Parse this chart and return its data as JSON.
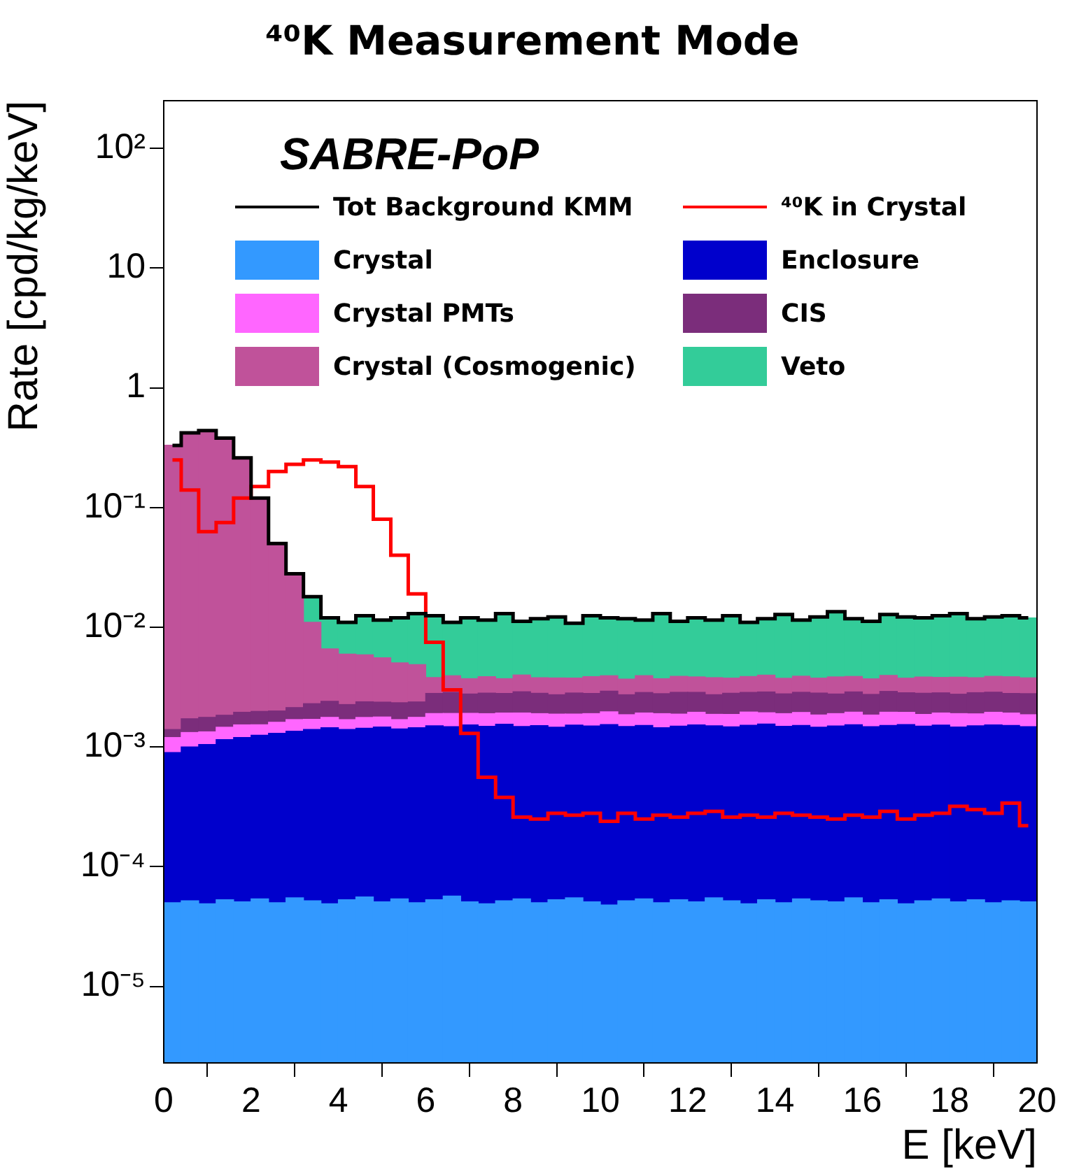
{
  "chart_data": {
    "type": "bar",
    "title": "⁴⁰K Measurement Mode",
    "xlabel": "E [keV]",
    "ylabel": "Rate [cpd/kg/keV]",
    "annotations": [
      "SABRE-PoP"
    ],
    "x": [
      0.2,
      0.6,
      1,
      1.4,
      1.8,
      2.2,
      2.6,
      3,
      3.4,
      3.8,
      4.2,
      4.6,
      5,
      5.4,
      5.8,
      6.2,
      6.6,
      7,
      7.4,
      7.8,
      8.2,
      8.6,
      9,
      9.4,
      9.8,
      10.2,
      10.6,
      11,
      11.4,
      11.8,
      12.2,
      12.6,
      13,
      13.4,
      13.8,
      14.2,
      14.6,
      15,
      15.4,
      15.8,
      16.2,
      16.6,
      17,
      17.4,
      17.8,
      18.2,
      18.6,
      19,
      19.4,
      19.8
    ],
    "xlim": [
      0,
      20
    ],
    "xticks": [
      0,
      2,
      4,
      6,
      8,
      10,
      12,
      14,
      16,
      18,
      20
    ],
    "ylim": [
      2.3e-06,
      250
    ],
    "log": true,
    "stacked": true,
    "legend": "top",
    "yticks": [
      {
        "value": 1e-05,
        "label": "10⁻⁵"
      },
      {
        "value": 0.0001,
        "label": "10⁻⁴"
      },
      {
        "value": 0.001,
        "label": "10⁻³"
      },
      {
        "value": 0.01,
        "label": "10⁻²"
      },
      {
        "value": 0.1,
        "label": "10⁻¹"
      },
      {
        "value": 1,
        "label": "1"
      },
      {
        "value": 10,
        "label": "10"
      },
      {
        "value": 100,
        "label": "10²"
      }
    ],
    "series": [
      {
        "name": "Crystal",
        "color": "#3399ff",
        "values": [
          5e-05,
          5.2e-05,
          4.9e-05,
          5.3e-05,
          5.1e-05,
          5.4e-05,
          5e-05,
          5.5e-05,
          5.2e-05,
          4.9e-05,
          5.3e-05,
          5.6e-05,
          5.1e-05,
          5.4e-05,
          5e-05,
          5.3e-05,
          5.7e-05,
          5.1e-05,
          4.9e-05,
          5.2e-05,
          5.4e-05,
          5e-05,
          5.3e-05,
          5.5e-05,
          5.1e-05,
          4.8e-05,
          5.2e-05,
          5.4e-05,
          5e-05,
          5.3e-05,
          5.1e-05,
          5.5e-05,
          5.2e-05,
          4.9e-05,
          5.3e-05,
          5e-05,
          5.4e-05,
          5.2e-05,
          5.1e-05,
          5.5e-05,
          5e-05,
          5.3e-05,
          4.9e-05,
          5.2e-05,
          5.4e-05,
          5.1e-05,
          5.3e-05,
          5e-05,
          5.2e-05,
          5.1e-05
        ]
      },
      {
        "name": "Enclosure",
        "color": "#0000cc",
        "values": [
          0.00085,
          0.00095,
          0.001,
          0.0011,
          0.00115,
          0.0012,
          0.00125,
          0.0013,
          0.00135,
          0.0014,
          0.00135,
          0.00138,
          0.00142,
          0.00136,
          0.0014,
          0.00145,
          0.00142,
          0.00148,
          0.00144,
          0.0015,
          0.00143,
          0.00146,
          0.00141,
          0.00147,
          0.00145,
          0.00149,
          0.00143,
          0.00146,
          0.0014,
          0.00144,
          0.00148,
          0.00145,
          0.00142,
          0.00147,
          0.0015,
          0.00144,
          0.00146,
          0.00141,
          0.00145,
          0.00148,
          0.00143,
          0.00146,
          0.00149,
          0.00144,
          0.00147,
          0.00142,
          0.00145,
          0.00148,
          0.00146,
          0.00143
        ]
      },
      {
        "name": "Crystal PMTs",
        "color": "#ff66ff",
        "values": [
          0.0003,
          0.00032,
          0.00029,
          0.00031,
          0.00033,
          0.00028,
          0.00031,
          0.00034,
          0.0003,
          0.00032,
          0.00029,
          0.00033,
          0.00031,
          0.00028,
          0.00032,
          0.0004,
          0.00043,
          0.00038,
          0.00041,
          0.00037,
          0.00044,
          0.00039,
          0.00042,
          0.00036,
          0.0004,
          0.00043,
          0.00038,
          0.00041,
          0.00045,
          0.00039,
          0.00042,
          0.00037,
          0.0004,
          0.00044,
          0.00038,
          0.00041,
          0.00043,
          0.00039,
          0.0004,
          0.00042,
          0.00037,
          0.00044,
          0.00041,
          0.00038,
          0.0004,
          0.00043,
          0.00039,
          0.00042,
          0.00041,
          0.00038
        ]
      },
      {
        "name": "CIS",
        "color": "#7b2d7b",
        "values": [
          0.0002,
          0.0004,
          0.00043,
          0.00038,
          0.00042,
          0.00045,
          0.00039,
          0.00044,
          0.0006,
          0.00064,
          0.00057,
          0.00062,
          0.00059,
          0.00065,
          0.00061,
          0.0009,
          0.00095,
          0.00086,
          0.00092,
          0.00088,
          0.00097,
          0.00091,
          0.00085,
          0.00094,
          0.0009,
          0.00096,
          0.00087,
          0.00093,
          0.00089,
          0.00098,
          0.00091,
          0.00086,
          0.00094,
          0.0009,
          0.00095,
          0.00088,
          0.00092,
          0.00097,
          0.00087,
          0.00093,
          0.0009,
          0.00096,
          0.00089,
          0.00094,
          0.00091,
          0.00086,
          0.00095,
          0.00092,
          0.00088,
          0.00093
        ]
      },
      {
        "name": "Crystal (Cosmogenic)",
        "color": "#c0529a",
        "values": [
          0.33,
          0.42,
          0.44,
          0.38,
          0.26,
          0.12,
          0.048,
          0.026,
          0.0087,
          0.0042,
          0.0037,
          0.0035,
          0.0032,
          0.0027,
          0.0025,
          0.001,
          0.00108,
          0.00095,
          0.00105,
          0.00092,
          0.0011,
          0.00098,
          0.00104,
          0.00094,
          0.00107,
          0.00101,
          0.00096,
          0.00109,
          0.00093,
          0.00103,
          0.00099,
          0.00106,
          0.00095,
          0.00102,
          0.0011,
          0.00097,
          0.00104,
          0.00094,
          0.00108,
          0.001,
          0.00096,
          0.00105,
          0.00092,
          0.00103,
          0.00098,
          0.00107,
          0.00095,
          0.00102,
          0.00106,
          0.00099
        ]
      },
      {
        "name": "Veto",
        "color": "#33cc99",
        "values": [
          null,
          null,
          null,
          null,
          null,
          null,
          null,
          null,
          0.007,
          0.0055,
          0.005,
          0.0067,
          0.006,
          0.007,
          0.0082,
          0.0087,
          0.0072,
          0.0082,
          0.0077,
          0.0092,
          0.0074,
          0.008,
          0.0084,
          0.007,
          0.0087,
          0.0082,
          0.008,
          0.0077,
          0.0092,
          0.0074,
          0.0082,
          0.0077,
          0.0087,
          0.0072,
          0.008,
          0.009,
          0.0077,
          0.0084,
          0.0097,
          0.008,
          0.0074,
          0.009,
          0.0084,
          0.0082,
          0.0087,
          0.0092,
          0.008,
          0.0084,
          0.0087,
          0.0082
        ]
      },
      {
        "name": "Tot Background KMM",
        "type": "step",
        "color": "#000000",
        "x": [
          0.2,
          0.6,
          1,
          1.4,
          1.8,
          2.2,
          2.6,
          3,
          3.4,
          3.8,
          4.2,
          4.6,
          5,
          5.4,
          5.8,
          6.2,
          6.6,
          7,
          7.4,
          7.8,
          8.2,
          8.6,
          9,
          9.4,
          9.8,
          10.2,
          10.6,
          11,
          11.4,
          11.8,
          12.2,
          12.6,
          13,
          13.4,
          13.8,
          14.2,
          14.6,
          15,
          15.4,
          15.8,
          16.2,
          16.6,
          17,
          17.4,
          17.8,
          18.2,
          18.6,
          19,
          19.4,
          19.8
        ],
        "values": [
          0.33,
          0.42,
          0.44,
          0.38,
          0.26,
          0.12,
          0.05,
          0.028,
          0.018,
          0.012,
          0.011,
          0.0125,
          0.0115,
          0.012,
          0.013,
          0.0125,
          0.011,
          0.012,
          0.0115,
          0.013,
          0.0112,
          0.0118,
          0.0122,
          0.0108,
          0.0125,
          0.012,
          0.0118,
          0.0115,
          0.013,
          0.0112,
          0.012,
          0.0115,
          0.0125,
          0.011,
          0.0118,
          0.0128,
          0.0115,
          0.0122,
          0.0135,
          0.0118,
          0.0112,
          0.0128,
          0.0122,
          0.012,
          0.0125,
          0.013,
          0.0118,
          0.0122,
          0.0125,
          0.012
        ]
      },
      {
        "name": "⁴⁰K in Crystal",
        "type": "step",
        "color": "#ff0000",
        "x": [
          0.2,
          0.6,
          1,
          1.4,
          1.8,
          2.2,
          2.6,
          3,
          3.4,
          3.8,
          4.2,
          4.6,
          5,
          5.4,
          5.8,
          6.2,
          6.6,
          7,
          7.4,
          7.8,
          8.2,
          8.6,
          9,
          9.4,
          9.8,
          10.2,
          10.6,
          11,
          11.4,
          11.8,
          12.2,
          12.6,
          13,
          13.4,
          13.8,
          14.2,
          14.6,
          15,
          15.4,
          15.8,
          16.2,
          16.6,
          17,
          17.4,
          17.8,
          18.2,
          18.6,
          19,
          19.4,
          19.8
        ],
        "values": [
          0.25,
          0.14,
          0.063,
          0.075,
          0.12,
          0.15,
          0.2,
          0.23,
          0.25,
          0.24,
          0.22,
          0.15,
          0.08,
          0.04,
          0.019,
          0.0075,
          0.003,
          0.0013,
          0.00056,
          0.00038,
          0.00026,
          0.00025,
          0.00028,
          0.00027,
          0.00028,
          0.00024,
          0.00028,
          0.00025,
          0.00027,
          0.00026,
          0.00028,
          0.00029,
          0.00026,
          0.00027,
          0.00026,
          0.00028,
          0.00027,
          0.00026,
          0.00025,
          0.00027,
          0.00026,
          0.00029,
          0.00025,
          0.00027,
          0.00028,
          0.00032,
          0.0003,
          0.00028,
          0.00034,
          0.00022
        ]
      }
    ]
  }
}
